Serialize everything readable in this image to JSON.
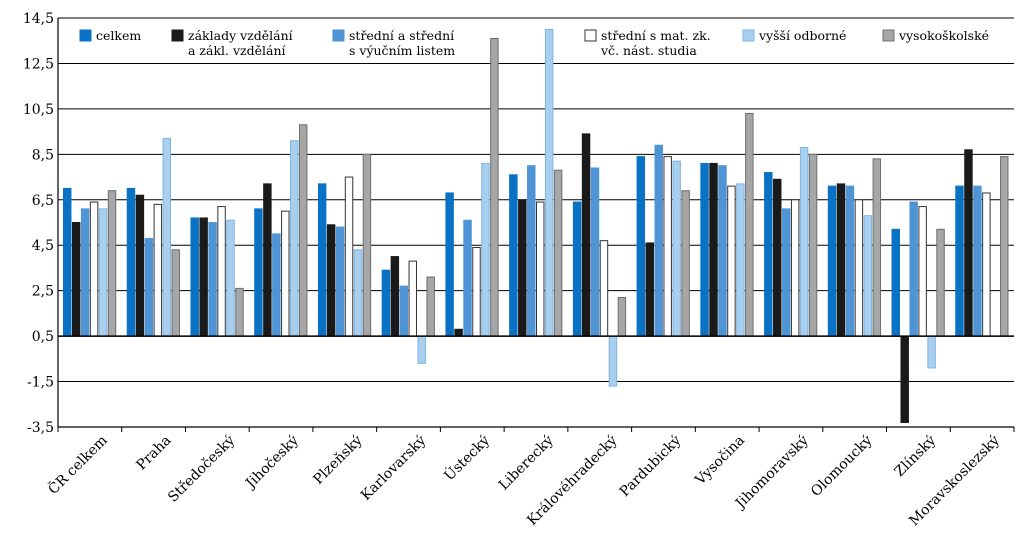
{
  "chart_data": {
    "type": "bar",
    "ylim": [
      -3.5,
      14.5
    ],
    "yticks": [
      "14,5",
      "12,5",
      "10,5",
      "8,5",
      "6,5",
      "4,5",
      "2,5",
      "0,5",
      "-1,5",
      "-3,5"
    ],
    "ytick_values": [
      14.5,
      12.5,
      10.5,
      8.5,
      6.5,
      4.5,
      2.5,
      0.5,
      -1.5,
      -3.5
    ],
    "grid": true,
    "categories": [
      "ČR celkem",
      "Praha",
      "Středočeský",
      "Jihočeský",
      "Plzeňský",
      "Karlovarský",
      "Ústecký",
      "Liberecký",
      "Královéhradecký",
      "Pardubický",
      "Vysočina",
      "Jihomoravský",
      "Olomoucký",
      "Zlínský",
      "Moravskoslezský"
    ],
    "series": [
      {
        "name": "celkem",
        "legend_lines": [
          "celkem"
        ],
        "color": "#0a72c4",
        "border": "#0a72c4",
        "values": [
          7.0,
          7.0,
          5.7,
          6.1,
          7.2,
          3.4,
          6.8,
          7.6,
          6.4,
          8.4,
          8.1,
          7.7,
          7.1,
          5.2,
          7.1
        ]
      },
      {
        "name": "základy vzdělání a zákl. vzdělání",
        "legend_lines": [
          "základy vzdělání",
          "a zákl. vzdělání"
        ],
        "color": "#1a1a1a",
        "border": "#1a1a1a",
        "values": [
          5.5,
          6.7,
          5.7,
          7.2,
          5.4,
          4.0,
          0.8,
          6.5,
          9.4,
          4.6,
          8.1,
          7.4,
          7.2,
          -3.3,
          8.7
        ]
      },
      {
        "name": "střední a střední s výučním listem",
        "legend_lines": [
          "střední a střední",
          "s výučním listem"
        ],
        "color": "#4f95d6",
        "border": "#4f95d6",
        "values": [
          6.1,
          4.8,
          5.5,
          5.0,
          5.3,
          2.7,
          5.6,
          8.0,
          7.9,
          8.9,
          8.0,
          6.1,
          7.1,
          6.4,
          7.1
        ]
      },
      {
        "name": "střední s mat. zk. vč. nást. studia",
        "legend_lines": [
          "střední s mat. zk.",
          "vč. nást. studia"
        ],
        "color": "#ffffff",
        "border": "#333333",
        "values": [
          6.4,
          6.3,
          6.2,
          6.0,
          7.5,
          3.8,
          4.4,
          6.4,
          4.7,
          8.4,
          7.1,
          6.5,
          6.5,
          6.2,
          6.8
        ]
      },
      {
        "name": "vyšší odborné",
        "legend_lines": [
          "vyšší odborné"
        ],
        "color": "#a9cfef",
        "border": "#7fb4e2",
        "values": [
          6.1,
          9.2,
          5.6,
          9.1,
          4.3,
          -0.7,
          8.1,
          14.0,
          -1.7,
          8.2,
          7.2,
          8.8,
          5.8,
          -0.9,
          0.5
        ]
      },
      {
        "name": "vysokoškolské",
        "legend_lines": [
          "vysokoškolské"
        ],
        "color": "#a6a6a6",
        "border": "#6e6e6e",
        "values": [
          6.9,
          4.3,
          2.6,
          9.8,
          8.5,
          3.1,
          13.6,
          7.8,
          2.2,
          6.9,
          10.3,
          8.5,
          8.3,
          5.2,
          8.4
        ]
      }
    ]
  }
}
